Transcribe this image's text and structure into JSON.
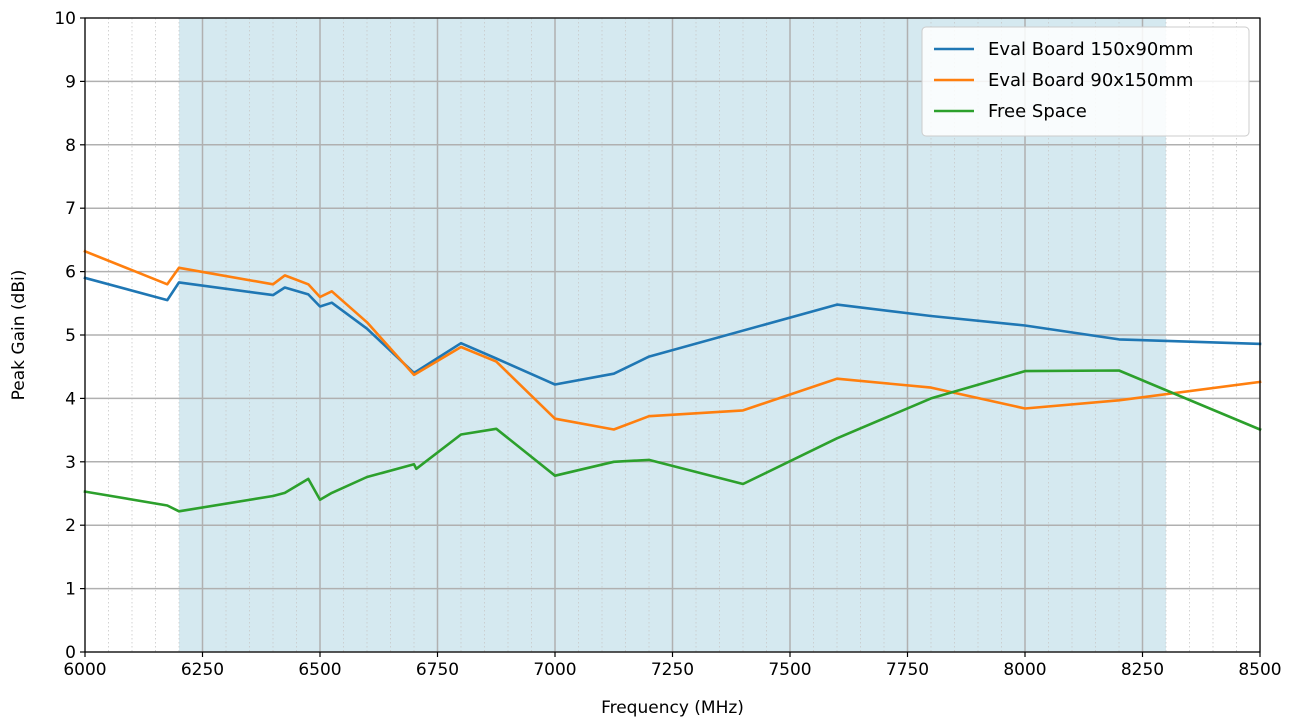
{
  "chart_data": {
    "type": "line",
    "title": "",
    "xlabel": "Frequency (MHz)",
    "ylabel": "Peak Gain (dBi)",
    "xlim": [
      6000,
      8500
    ],
    "ylim": [
      0,
      10
    ],
    "x_ticks": [
      6000,
      6250,
      6500,
      6750,
      7000,
      7250,
      7500,
      7750,
      8000,
      8250,
      8500
    ],
    "y_ticks": [
      0,
      1,
      2,
      3,
      4,
      5,
      6,
      7,
      8,
      9,
      10
    ],
    "x_minor_step": 50,
    "grid": true,
    "shaded_band": {
      "x_start": 6200,
      "x_end": 8300,
      "color": "#d5e9f0"
    },
    "legend": {
      "placement": "top-right"
    },
    "series": [
      {
        "name": "Eval Board 150x90mm",
        "color": "#1f77b4",
        "points": [
          [
            6000,
            5.9
          ],
          [
            6175,
            5.55
          ],
          [
            6200,
            5.83
          ],
          [
            6400,
            5.63
          ],
          [
            6425,
            5.75
          ],
          [
            6475,
            5.64
          ],
          [
            6500,
            5.45
          ],
          [
            6525,
            5.51
          ],
          [
            6600,
            5.1
          ],
          [
            6700,
            4.4
          ],
          [
            6800,
            4.87
          ],
          [
            6875,
            4.63
          ],
          [
            7000,
            4.22
          ],
          [
            7125,
            4.39
          ],
          [
            7200,
            4.66
          ],
          [
            7600,
            5.48
          ],
          [
            7800,
            5.3
          ],
          [
            8000,
            5.15
          ],
          [
            8200,
            4.93
          ],
          [
            8500,
            4.86
          ]
        ]
      },
      {
        "name": "Eval Board 90x150mm",
        "color": "#ff7f0e",
        "points": [
          [
            6000,
            6.32
          ],
          [
            6175,
            5.8
          ],
          [
            6200,
            6.06
          ],
          [
            6400,
            5.8
          ],
          [
            6425,
            5.94
          ],
          [
            6475,
            5.8
          ],
          [
            6500,
            5.6
          ],
          [
            6525,
            5.69
          ],
          [
            6600,
            5.2
          ],
          [
            6700,
            4.37
          ],
          [
            6800,
            4.81
          ],
          [
            6875,
            4.58
          ],
          [
            7000,
            3.68
          ],
          [
            7125,
            3.51
          ],
          [
            7200,
            3.72
          ],
          [
            7400,
            3.81
          ],
          [
            7600,
            4.31
          ],
          [
            7800,
            4.17
          ],
          [
            8000,
            3.84
          ],
          [
            8200,
            3.97
          ],
          [
            8500,
            4.26
          ]
        ]
      },
      {
        "name": "Free Space",
        "color": "#2ca02c",
        "points": [
          [
            6000,
            2.53
          ],
          [
            6175,
            2.31
          ],
          [
            6200,
            2.22
          ],
          [
            6400,
            2.46
          ],
          [
            6425,
            2.51
          ],
          [
            6475,
            2.73
          ],
          [
            6500,
            2.4
          ],
          [
            6525,
            2.51
          ],
          [
            6600,
            2.76
          ],
          [
            6700,
            2.96
          ],
          [
            6705,
            2.89
          ],
          [
            6800,
            3.43
          ],
          [
            6875,
            3.52
          ],
          [
            7000,
            2.78
          ],
          [
            7125,
            3.0
          ],
          [
            7200,
            3.03
          ],
          [
            7400,
            2.65
          ],
          [
            7600,
            3.37
          ],
          [
            7800,
            4.0
          ],
          [
            8000,
            4.43
          ],
          [
            8200,
            4.44
          ],
          [
            8500,
            3.51
          ]
        ]
      }
    ]
  }
}
